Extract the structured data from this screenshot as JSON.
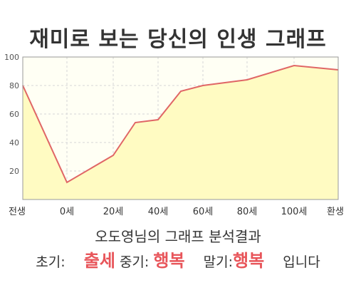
{
  "chart_data": {
    "type": "area",
    "title": "재미로 보는 당신의 인생 그래프",
    "x_tick_labels": [
      "전생",
      "0세",
      "20세",
      "40세",
      "60세",
      "80세",
      "100세",
      "환생"
    ],
    "y_ticks": [
      20,
      40,
      60,
      80,
      100
    ],
    "ylim": [
      0,
      100
    ],
    "points": [
      {
        "x": "전생",
        "y": 80
      },
      {
        "x": "0세",
        "y": 12
      },
      {
        "x": "20세",
        "y": 31
      },
      {
        "x": "30세",
        "y": 54
      },
      {
        "x": "40세",
        "y": 56
      },
      {
        "x": "50세",
        "y": 76
      },
      {
        "x": "60세",
        "y": 80
      },
      {
        "x": "80세",
        "y": 84
      },
      {
        "x": "100세",
        "y": 94
      },
      {
        "x": "환생",
        "y": 91
      }
    ],
    "grid": true,
    "line_color": "#e06666",
    "fill_color": "#fffbc2"
  },
  "result": {
    "heading": "오도영님의 그래프 분석결과",
    "early_label": "초기:",
    "early_value": "출세",
    "middle_label": "중기:",
    "middle_value": "행복",
    "late_label": "말기:",
    "late_value": "행복",
    "ending": "입니다"
  }
}
